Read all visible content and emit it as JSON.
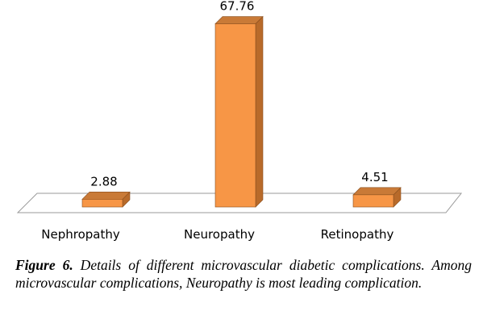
{
  "chart_data": {
    "type": "bar",
    "categories": [
      "Nephropathy",
      "Neuropathy",
      "Retinopathy"
    ],
    "values": [
      2.88,
      67.76,
      4.51
    ],
    "data_labels": [
      "2.88",
      "67.76",
      "4.51"
    ],
    "title": "",
    "xlabel": "",
    "ylabel": "",
    "ylim": [
      0,
      70
    ],
    "grid": false,
    "legend": "none",
    "style": "3d",
    "colors": {
      "bar_front": "#f79646",
      "bar_top": "#c97a37",
      "bar_side": "#b86a2a",
      "bar_edge": "#8a4f1e",
      "floor": "#ffffff",
      "floor_edge": "#9a9a9a"
    }
  },
  "caption": {
    "label": "Figure 6.",
    "text": " Details of different microvascular diabetic complications. Among microvascular complications, Neuropathy is most leading complication."
  }
}
